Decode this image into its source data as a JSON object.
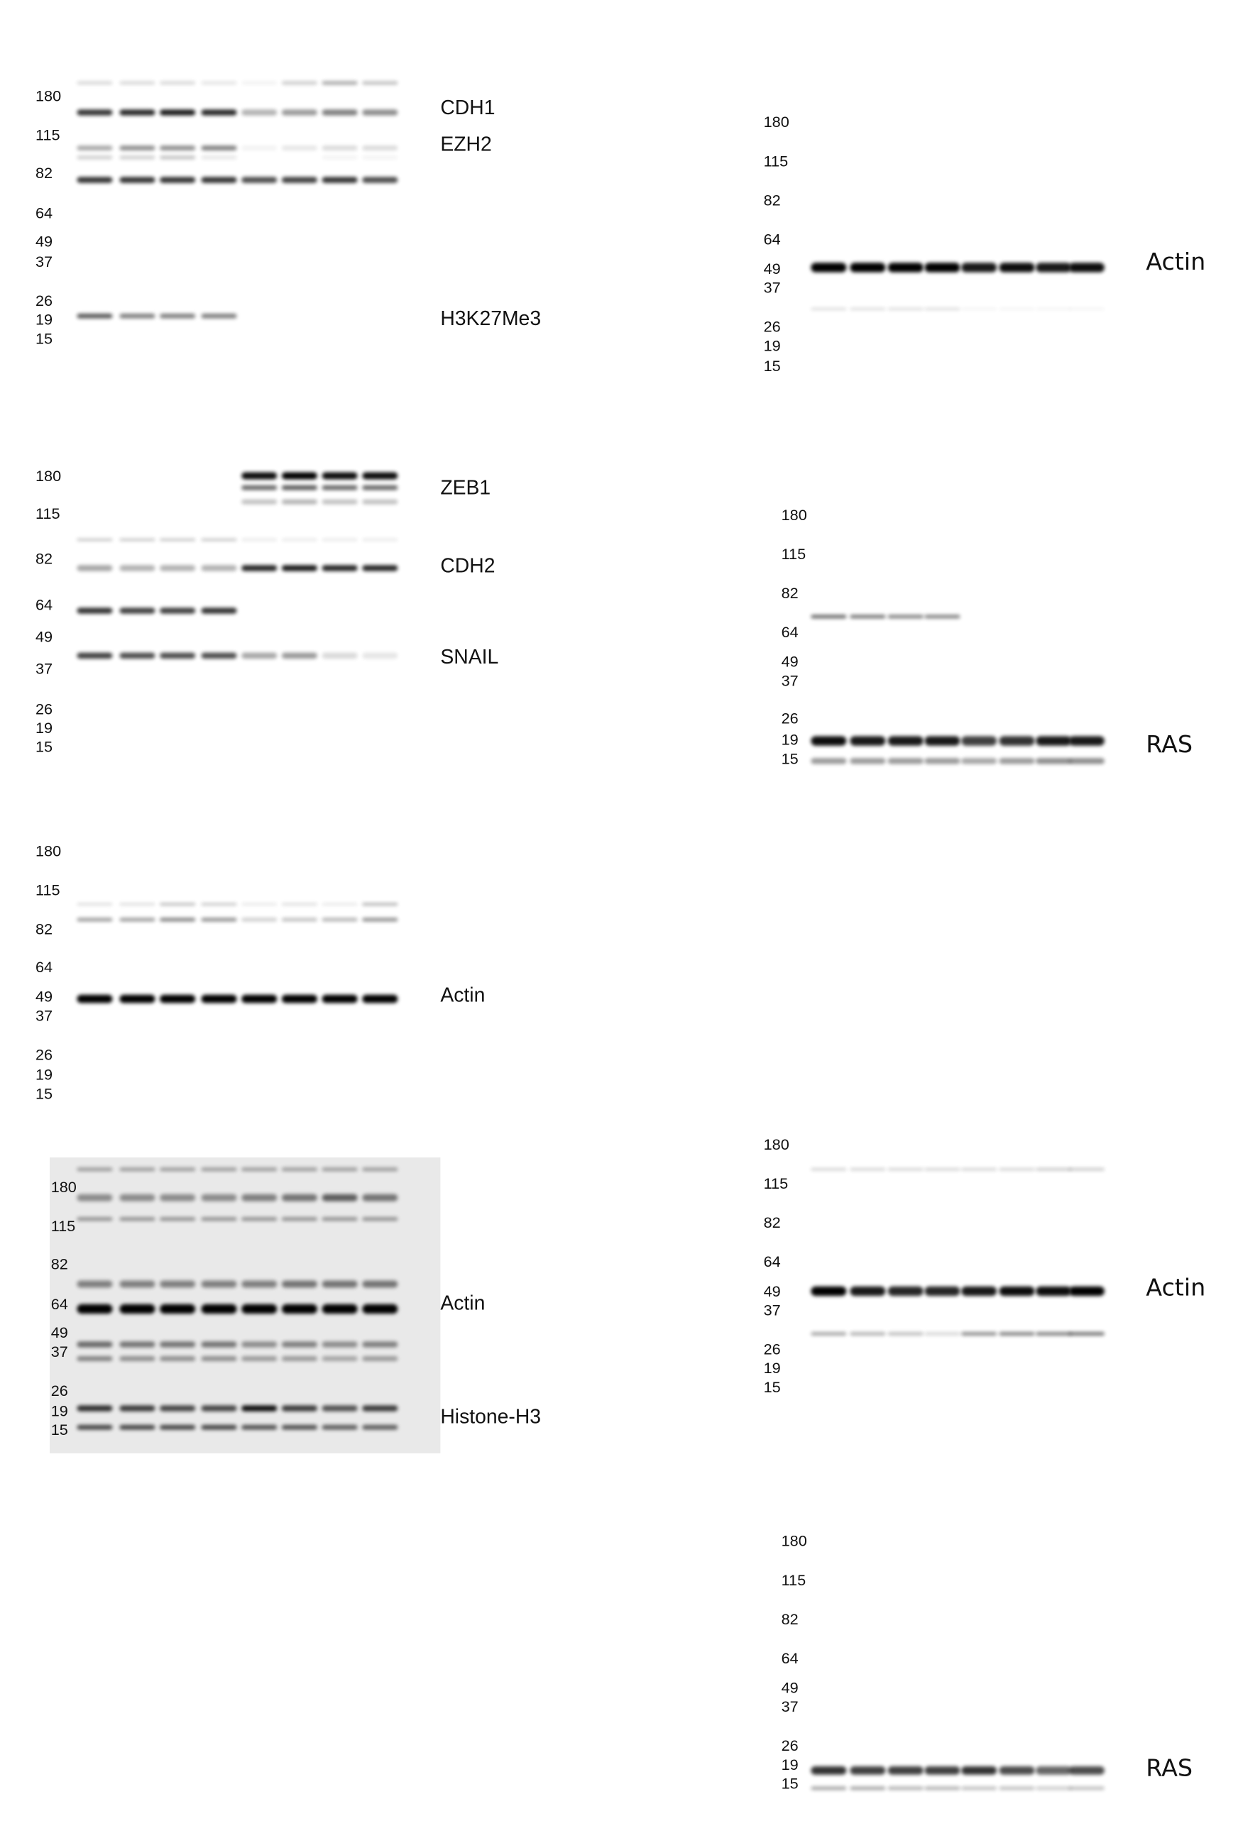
{
  "panels": [
    {
      "markers": [
        180,
        115,
        82,
        64,
        49,
        37,
        26,
        19,
        15
      ],
      "labels": [
        "CDH1",
        "EZH2",
        "H3K27Me3"
      ]
    },
    {
      "markers": [
        180,
        115,
        82,
        64,
        49,
        37,
        26,
        19,
        15
      ],
      "labels": [
        "ZEB1",
        "CDH2",
        "SNAIL"
      ]
    },
    {
      "markers": [
        180,
        115,
        82,
        64,
        49,
        37,
        26,
        19,
        15
      ],
      "labels": [
        "Actin"
      ]
    },
    {
      "markers": [
        180,
        115,
        82,
        64,
        49,
        37,
        26,
        19,
        15
      ],
      "labels": [
        "Actin",
        "Histone-H3"
      ]
    },
    {
      "markers": [
        180,
        115,
        82,
        64,
        49,
        37,
        26,
        19,
        15
      ],
      "labels": [
        "Actin"
      ]
    },
    {
      "markers": [
        180,
        115,
        82,
        64,
        49,
        37,
        26,
        19,
        15
      ],
      "labels": [
        "RAS"
      ]
    },
    {
      "markers": [
        180,
        115,
        82,
        64,
        49,
        37,
        26,
        19,
        15
      ],
      "labels": [
        "Actin"
      ]
    },
    {
      "markers": [
        180,
        115,
        82,
        64,
        49,
        37,
        26,
        19,
        15
      ],
      "labels": [
        "RAS"
      ]
    }
  ]
}
